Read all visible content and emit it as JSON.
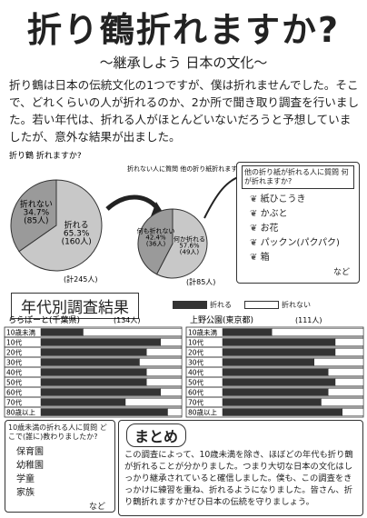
{
  "header": {
    "title": "折り鶴折れますか?",
    "subtitle": "～継承しよう 日本の文化～"
  },
  "intro": "折り鶴は日本の伝統文化の1つですが、僕は折れませんでした。そこで、どれくらいの人が折れるのか、2か所で聞き取り調査を行いました。若い年代は、折れる人がほとんどいないだろうと予想していましたが、意外な結果が出ました。",
  "pies": [
    {
      "question": "折り鶴 折れますか?",
      "total": "(計245人)",
      "slices": [
        {
          "label": "折れる",
          "value": 65.3,
          "value_label": "65.3%",
          "count": "(160人)",
          "color": "#c8c8c8"
        },
        {
          "label": "折れない",
          "value": 34.7,
          "value_label": "34.7%",
          "count": "(85人)",
          "color": "#9a9a9a"
        }
      ]
    },
    {
      "question": "折れない人に質問 他の折り紙折れますか?",
      "total": "(計85人)",
      "slices": [
        {
          "label": "何か折れる",
          "value": 57.6,
          "value_label": "57.6%",
          "count": "(49人)",
          "color": "#c8c8c8"
        },
        {
          "label": "何も折れない",
          "value": 42.4,
          "value_label": "42.4%",
          "count": "(36人)",
          "color": "#9a9a9a"
        }
      ]
    }
  ],
  "list": {
    "question": "他の折り紙が折れる人に質問 何が折れますか?",
    "items": [
      "紙ひこうき",
      "かぶと",
      "お花",
      "パックン(パクパク)",
      "箱"
    ],
    "note": "など"
  },
  "results": {
    "heading": "年代別調査結果",
    "legend": [
      {
        "label": "折れる",
        "color": "#333333"
      },
      {
        "label": "折れない",
        "color": "#ffffff"
      }
    ],
    "charts": [
      {
        "place": "ららぽーと(千葉県)",
        "total": "(134人)",
        "categories": [
          "10歳未満",
          "10代",
          "20代",
          "30代",
          "40代",
          "50代",
          "60代",
          "70代",
          "80歳以上"
        ],
        "xlim": [
          0,
          100
        ],
        "series": [
          {
            "values": [
              30,
              85,
              75,
              70,
              75,
              75,
              85,
              60,
              90
            ]
          },
          {
            "values": [
              70,
              15,
              25,
              30,
              25,
              25,
              15,
              40,
              10
            ]
          }
        ]
      },
      {
        "place": "上野公園(東京都)",
        "total": "(111人)",
        "categories": [
          "10歳未満",
          "10代",
          "20代",
          "30代",
          "40代",
          "50代",
          "60代",
          "70代",
          "80歳以上"
        ],
        "xlim": [
          0,
          100
        ],
        "series": [
          {
            "values": [
              35,
              80,
              80,
              65,
              75,
              80,
              75,
              70,
              85
            ]
          },
          {
            "values": [
              65,
              20,
              20,
              35,
              25,
              20,
              25,
              30,
              15
            ]
          }
        ]
      }
    ]
  },
  "question2": {
    "question": "10歳未満の折れる人に質問 どこで(誰に)教わりましたか?",
    "items": [
      "保育園",
      "幼稚園",
      "学童",
      "家族"
    ],
    "note": "など"
  },
  "summary": {
    "heading": "まとめ",
    "text": "この調査によって、10歳未満を除き、ほぼどの年代も折り鶴が折れることが分かりました。つまり大切な日本の文化はしっかり継承されていると確信しました。僕も、この調査をきっかけに練習を重ね、折れるようになりました。皆さん、折り鶴折れますか?ぜひ日本の伝統を守りましょう。"
  }
}
